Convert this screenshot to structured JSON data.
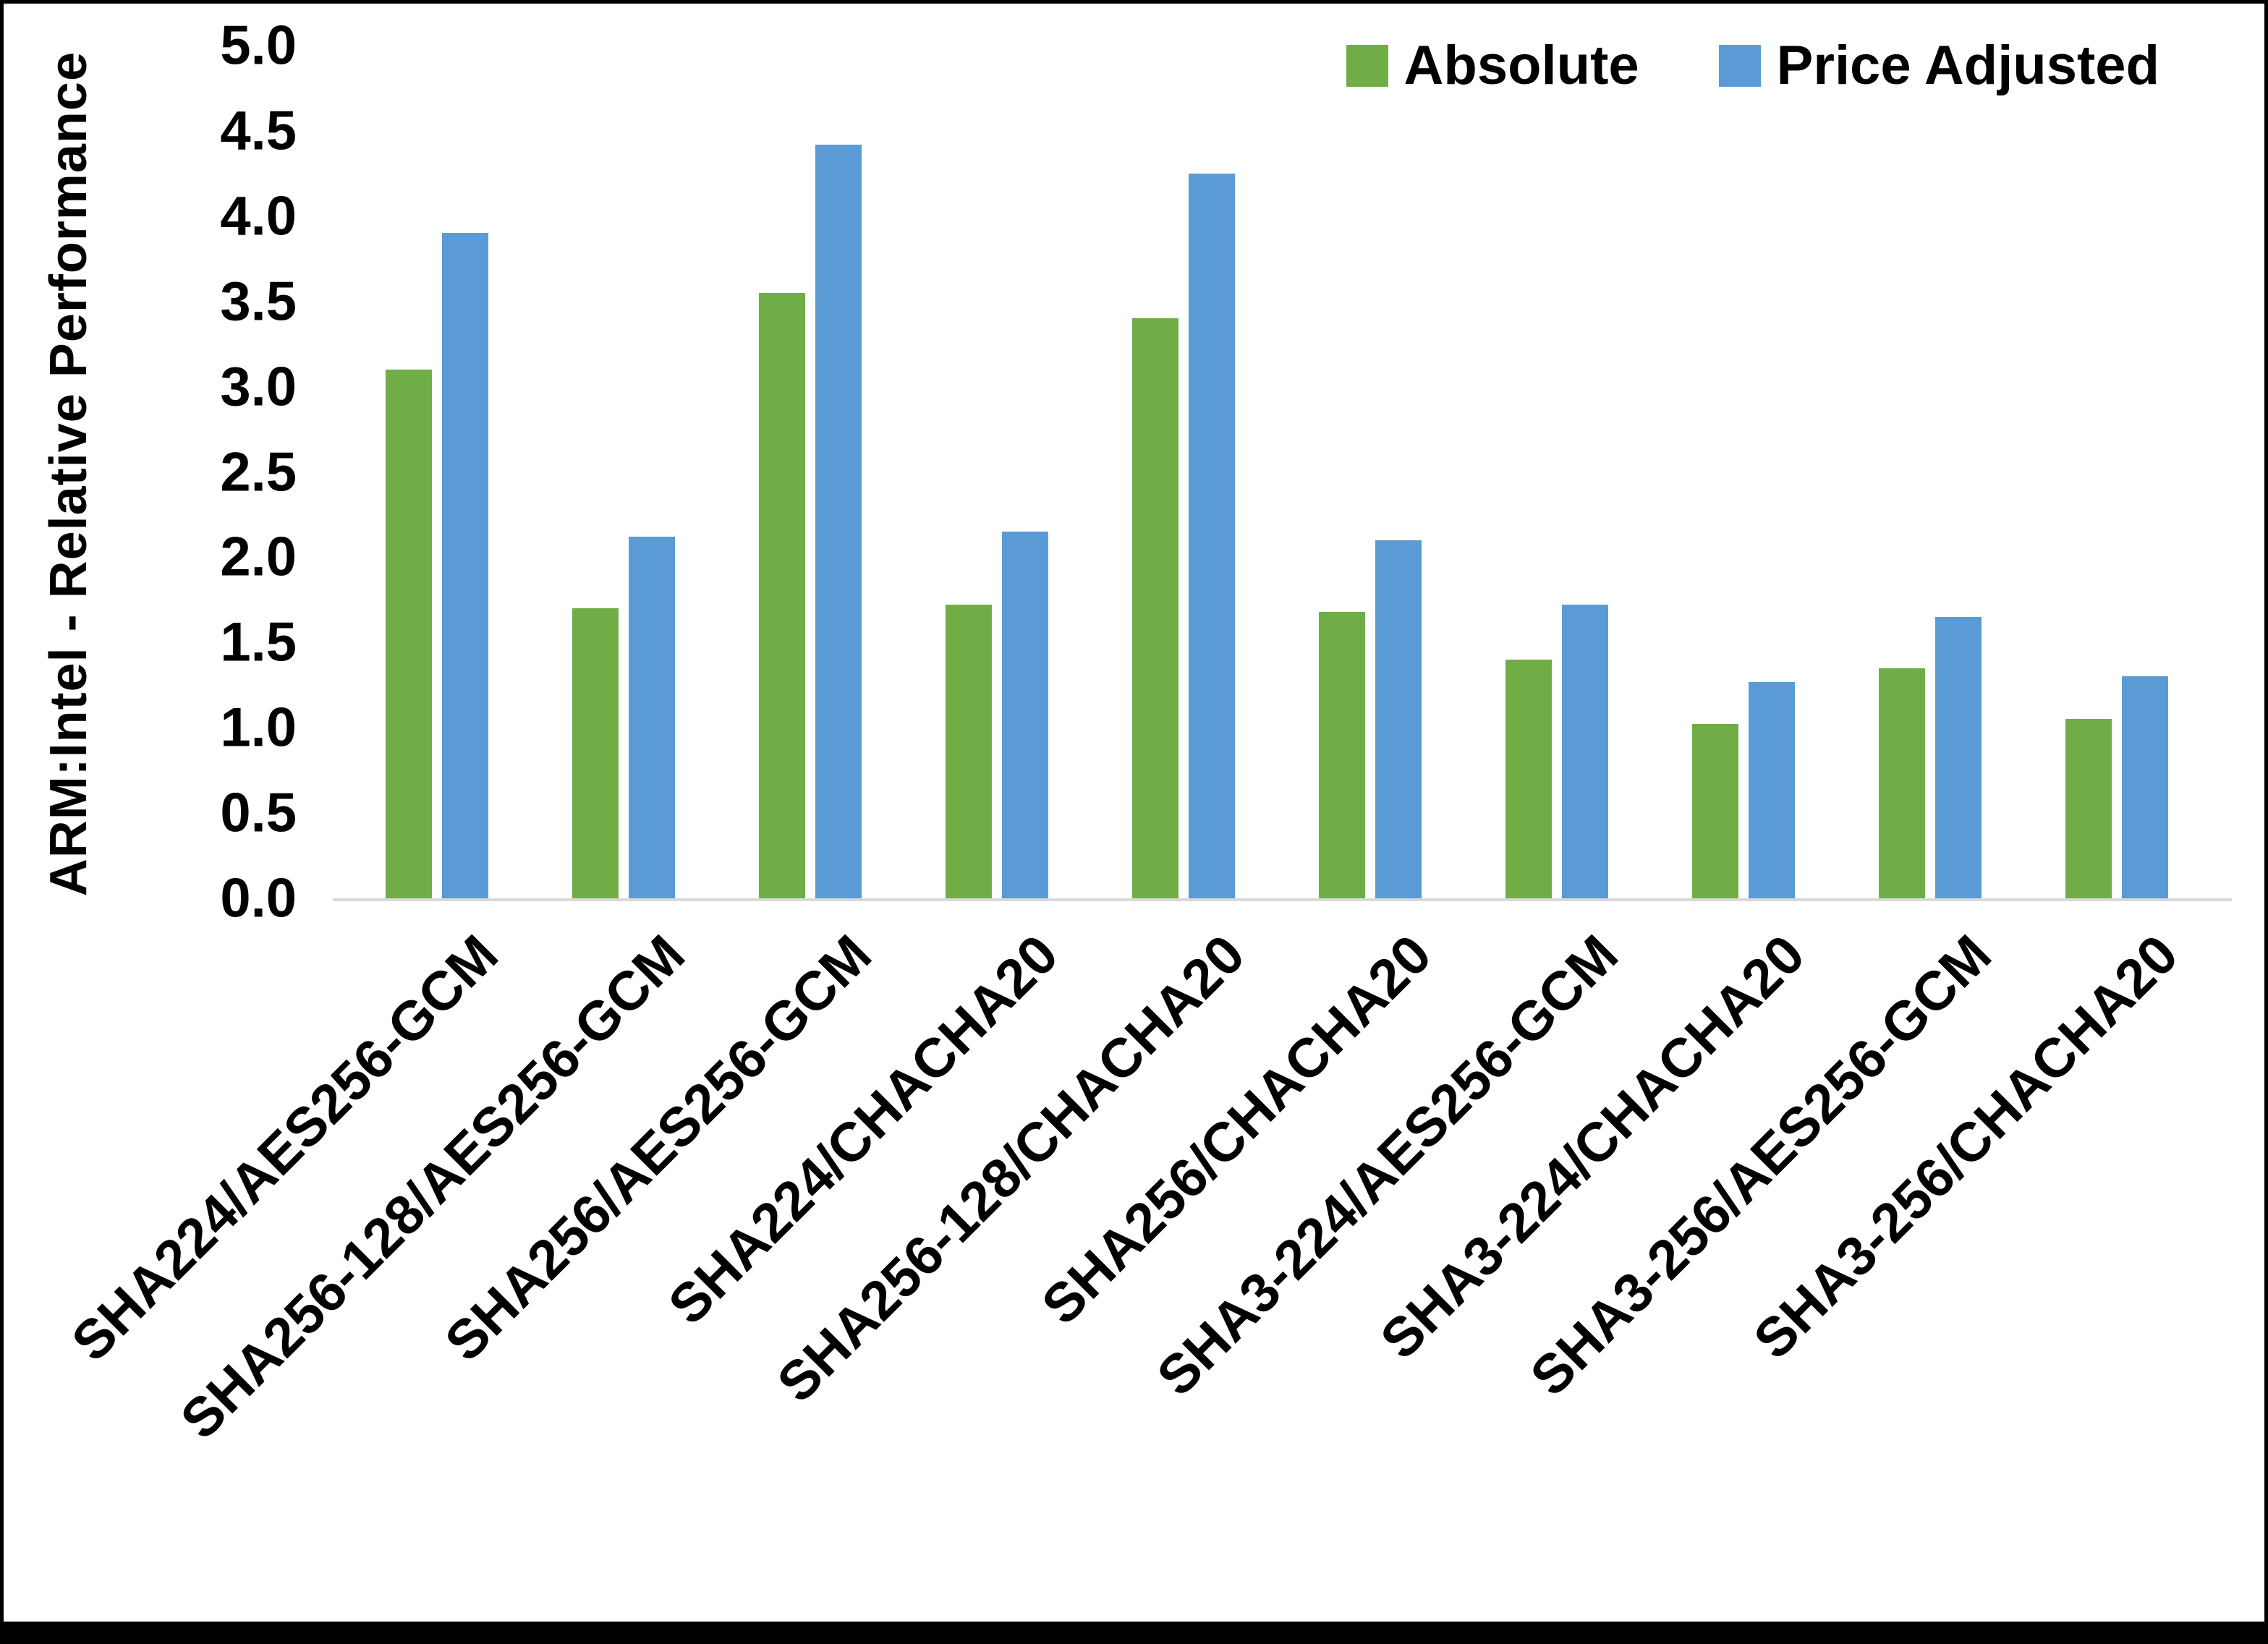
{
  "chart_data": {
    "type": "bar",
    "title": "",
    "xlabel": "",
    "ylabel": "ARM:Intel - Relative Performance",
    "ylim": [
      0.0,
      5.0
    ],
    "y_ticks": [
      0.0,
      0.5,
      1.0,
      1.5,
      2.0,
      2.5,
      3.0,
      3.5,
      4.0,
      4.5,
      5.0
    ],
    "grid": false,
    "legend_position": "top-right",
    "categories": [
      "SHA224/AES256-GCM",
      "SHA256-128/AES256-GCM",
      "SHA256/AES256-GCM",
      "SHA224/CHACHA20",
      "SHA256-128/CHACHA20",
      "SHA256/CHACHA20",
      "SHA3-224/AES256-GCM",
      "SHA3-224/CHACHA20",
      "SHA3-256/AES256-GCM",
      "SHA3-256/CHACHA20"
    ],
    "series": [
      {
        "name": "Absolute",
        "color": "#70AD47",
        "values": [
          3.1,
          1.7,
          3.55,
          1.72,
          3.4,
          1.68,
          1.4,
          1.02,
          1.35,
          1.05
        ]
      },
      {
        "name": "Price Adjusted",
        "color": "#5B9BD5",
        "values": [
          3.9,
          2.12,
          4.42,
          2.15,
          4.25,
          2.1,
          1.72,
          1.27,
          1.65,
          1.3
        ]
      }
    ]
  },
  "colors": {
    "axis_line": "#D9D9D9",
    "text": "#000000",
    "background": "#FFFFFF",
    "border": "#000000"
  }
}
